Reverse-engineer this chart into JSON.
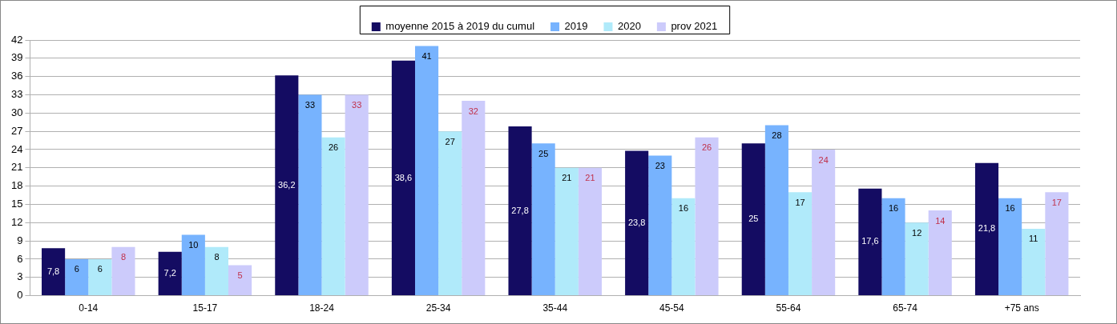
{
  "chart_data": {
    "type": "bar",
    "categories": [
      "0-14",
      "15-17",
      "18-24",
      "25-34",
      "35-44",
      "45-54",
      "55-64",
      "65-74",
      "+75 ans"
    ],
    "series": [
      {
        "name": "moyenne 2015 à 2019 du cumul",
        "color": "#140c62",
        "values": [
          7.8,
          7.2,
          36.2,
          38.6,
          27.8,
          23.8,
          25,
          17.6,
          21.8
        ],
        "value_labels": [
          "7,8",
          "7,2",
          "36,2",
          "38,6",
          "27,8",
          "23,8",
          "25",
          "17,6",
          "21,8"
        ]
      },
      {
        "name": "2019",
        "color": "#77b3fe",
        "values": [
          6,
          10,
          33,
          41,
          25,
          23,
          28,
          16,
          16
        ],
        "value_labels": [
          "6",
          "10",
          "33",
          "41",
          "25",
          "23",
          "28",
          "16",
          "16"
        ]
      },
      {
        "name": "2020",
        "color": "#b0eafa",
        "values": [
          6,
          8,
          26,
          27,
          21,
          16,
          17,
          12,
          11
        ],
        "value_labels": [
          "6",
          "8",
          "26",
          "27",
          "21",
          "16",
          "17",
          "12",
          "11"
        ]
      },
      {
        "name": "prov 2021",
        "color": "#cccbfb",
        "values": [
          8,
          5,
          33,
          32,
          21,
          26,
          24,
          14,
          17
        ],
        "value_labels": [
          "8",
          "5",
          "33",
          "32",
          "21",
          "26",
          "24",
          "14",
          "17"
        ]
      }
    ],
    "ylim": [
      0,
      42
    ],
    "yticks": [
      0,
      3,
      6,
      9,
      12,
      15,
      18,
      21,
      24,
      27,
      30,
      33,
      36,
      39,
      42
    ],
    "grid": "y",
    "legend": "top"
  }
}
